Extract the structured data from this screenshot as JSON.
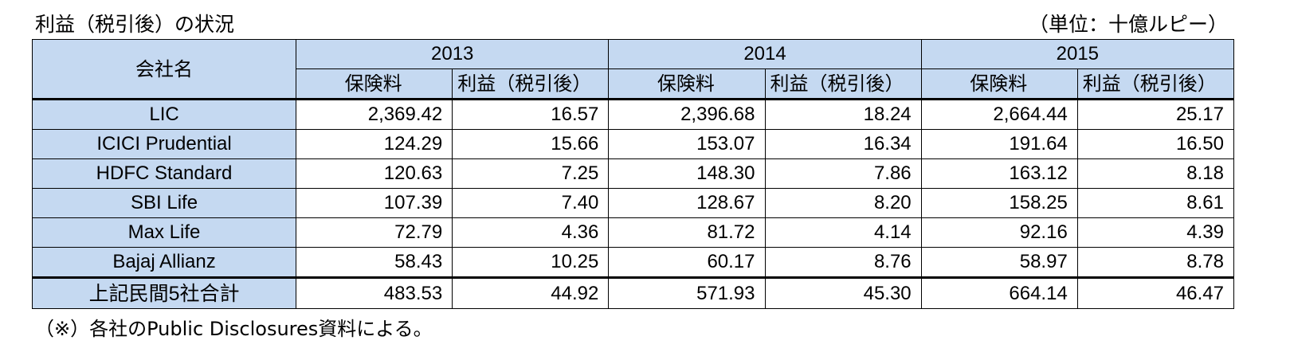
{
  "title": "利益（税引後）の状況",
  "unit": "（単位：十億ルピー）",
  "table": {
    "company_header": "会社名",
    "years": [
      "2013",
      "2014",
      "2015"
    ],
    "sub_headers": [
      "保険料",
      "利益（税引後）",
      "保険料",
      "利益（税引後）",
      "保険料",
      "利益（税引後）"
    ],
    "rows": [
      {
        "name": "LIC",
        "values": [
          "2,369.42",
          "16.57",
          "2,396.68",
          "18.24",
          "2,664.44",
          "25.17"
        ]
      },
      {
        "name": "ICICI Prudential",
        "values": [
          "124.29",
          "15.66",
          "153.07",
          "16.34",
          "191.64",
          "16.50"
        ]
      },
      {
        "name": "HDFC Standard",
        "values": [
          "120.63",
          "7.25",
          "148.30",
          "7.86",
          "163.12",
          "8.18"
        ]
      },
      {
        "name": "SBI Life",
        "values": [
          "107.39",
          "7.40",
          "128.67",
          "8.20",
          "158.25",
          "8.61"
        ]
      },
      {
        "name": "Max Life",
        "values": [
          "72.79",
          "4.36",
          "81.72",
          "4.14",
          "92.16",
          "4.39"
        ]
      },
      {
        "name": "Bajaj Allianz",
        "values": [
          "58.43",
          "10.25",
          "60.17",
          "8.76",
          "58.97",
          "8.78"
        ]
      }
    ],
    "total": {
      "name": "上記民間5社合計",
      "values": [
        "483.53",
        "44.92",
        "571.93",
        "45.30",
        "664.14",
        "46.47"
      ]
    }
  },
  "note": "（※）各社のPublic Disclosures資料による。"
}
